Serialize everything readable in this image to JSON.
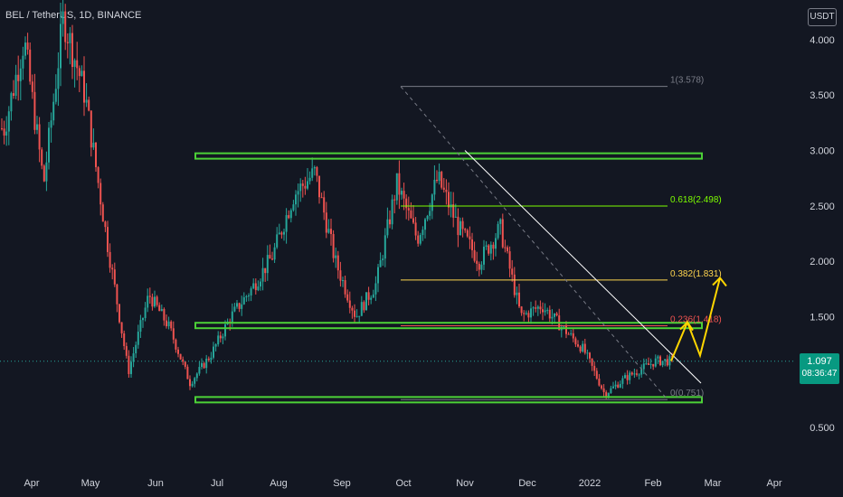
{
  "header": {
    "symbol": "BEL / TetherUS, 1D, BINANCE",
    "currency": "USDT"
  },
  "price_label": {
    "value": "1.097",
    "countdown": "08:36:47"
  },
  "colors": {
    "background": "#131722",
    "up": "#26a69a",
    "down": "#ef5350",
    "support_zone": "#4cd137",
    "fib_1": "#787b86",
    "fib_0618": "#7cfc00",
    "fib_0382": "#ffd54f",
    "fib_0236": "#ef5350",
    "fib_0": "#787b86",
    "trendline": "#ffffff",
    "projection_arrow": "#ffd600"
  },
  "chart_data": {
    "type": "candlestick",
    "title": "BEL / TetherUS, 1D, BINANCE",
    "ylim": [
      0.25,
      4.3
    ],
    "y_ticks": [
      "4.000",
      "3.500",
      "3.000",
      "2.500",
      "2.000",
      "1.500",
      "0.500"
    ],
    "x_ticks": [
      "Apr",
      "May",
      "Jun",
      "Jul",
      "Aug",
      "Sep",
      "Oct",
      "Nov",
      "Dec",
      "2022",
      "Feb",
      "Mar",
      "Apr"
    ],
    "last_price": 1.097,
    "approx_close_path": [
      [
        "Apr",
        3.2
      ],
      [
        "Apr",
        4.0
      ],
      [
        "Apr",
        2.7
      ],
      [
        "May",
        4.2
      ],
      [
        "May",
        3.5
      ],
      [
        "May",
        2.2
      ],
      [
        "Jun",
        1.0
      ],
      [
        "Jun",
        1.7
      ],
      [
        "Jun",
        1.4
      ],
      [
        "Jul",
        0.9
      ],
      [
        "Jul",
        1.15
      ],
      [
        "Jul",
        1.5
      ],
      [
        "Aug",
        1.75
      ],
      [
        "Aug",
        2.05
      ],
      [
        "Aug",
        2.6
      ],
      [
        "Sep",
        2.8
      ],
      [
        "Sep",
        2.0
      ],
      [
        "Sep",
        1.5
      ],
      [
        "Oct",
        1.8
      ],
      [
        "Oct",
        2.7
      ],
      [
        "Oct",
        2.2
      ],
      [
        "Nov",
        2.75
      ],
      [
        "Nov",
        2.3
      ],
      [
        "Nov",
        2.0
      ],
      [
        "Dec",
        2.3
      ],
      [
        "Dec",
        1.5
      ],
      [
        "Dec",
        1.6
      ],
      [
        "2022",
        1.4
      ],
      [
        "2022",
        1.2
      ],
      [
        "2022",
        0.8
      ],
      [
        "Feb",
        0.95
      ],
      [
        "Feb",
        1.1
      ]
    ],
    "fibonacci": [
      {
        "label": "1(3.578)",
        "value": 3.578
      },
      {
        "label": "0.618(2.498)",
        "value": 2.498
      },
      {
        "label": "0.382(1.831)",
        "value": 1.831
      },
      {
        "label": "0.236(1.418)",
        "value": 1.418
      },
      {
        "label": "0(0.751)",
        "value": 0.751
      }
    ],
    "support_resistance_zones": [
      2.95,
      1.42,
      0.75
    ],
    "descending_trendline": {
      "from_date": "Nov",
      "from_price": 3.0,
      "to_date": "Mar",
      "to_price": 0.9
    },
    "projection_path": [
      [
        1.1
      ],
      [
        1.45
      ],
      [
        1.15
      ],
      [
        1.85
      ]
    ],
    "grid": false,
    "legend": "none"
  }
}
